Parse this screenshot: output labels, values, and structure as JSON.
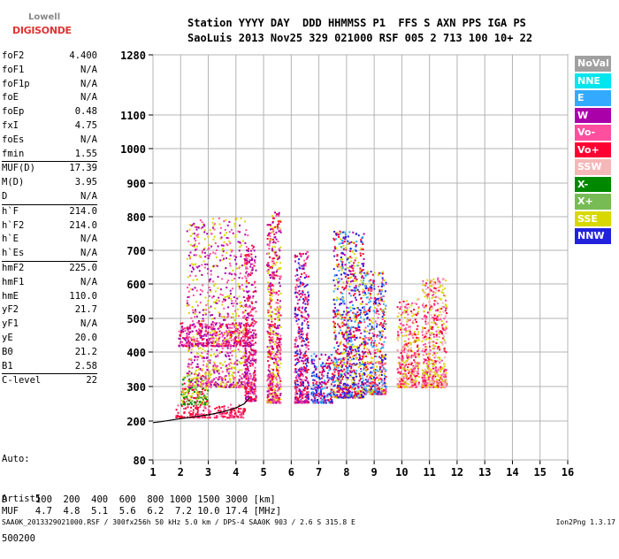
{
  "logo": {
    "line1": "Lowell",
    "line2": "DIGISONDE"
  },
  "header": {
    "line1": "Station YYYY DAY  DDD HHMMSS P1  FFS S AXN PPS IGA PS",
    "line2": "SaoLuis 2013 Nov25 329 021000 RSF 005 2 713 100 10+ 22"
  },
  "params": [
    {
      "label": "foF2",
      "value": "4.400"
    },
    {
      "label": "foF1",
      "value": "N/A"
    },
    {
      "label": "foF1p",
      "value": "N/A"
    },
    {
      "label": "foE",
      "value": "N/A"
    },
    {
      "label": "foEp",
      "value": "0.48"
    },
    {
      "label": "fxI",
      "value": "4.75"
    },
    {
      "label": "foEs",
      "value": "N/A"
    },
    {
      "label": "fmin",
      "value": "1.55"
    },
    {
      "label": "MUF(D)",
      "value": "17.39"
    },
    {
      "label": "M(D)",
      "value": "3.95"
    },
    {
      "label": "D",
      "value": "N/A"
    },
    {
      "label": "h`F",
      "value": "214.0"
    },
    {
      "label": "h`F2",
      "value": "214.0"
    },
    {
      "label": "h`E",
      "value": "N/A"
    },
    {
      "label": "h`Es",
      "value": "N/A"
    },
    {
      "label": "hmF2",
      "value": "225.0"
    },
    {
      "label": "hmF1",
      "value": "N/A"
    },
    {
      "label": "hmE",
      "value": "110.0"
    },
    {
      "label": "yF2",
      "value": "21.7"
    },
    {
      "label": "yF1",
      "value": "N/A"
    },
    {
      "label": "yE",
      "value": "20.0"
    },
    {
      "label": "B0",
      "value": "21.2"
    },
    {
      "label": "B1",
      "value": "2.58"
    },
    {
      "label": "C-level",
      "value": "22"
    }
  ],
  "auto": {
    "line1": "Auto:",
    "line2": "Artist5",
    "line3": "500200"
  },
  "legend": [
    {
      "label": "NoVal",
      "color": "#a0a0a0"
    },
    {
      "label": "NNE",
      "color": "#00e5ee"
    },
    {
      "label": "E",
      "color": "#33aaff"
    },
    {
      "label": "W",
      "color": "#aa00aa"
    },
    {
      "label": "Vo-",
      "color": "#ff4f9e"
    },
    {
      "label": "Vo+",
      "color": "#ff0033"
    },
    {
      "label": "SSW",
      "color": "#f5b8b8"
    },
    {
      "label": "X-",
      "color": "#008800"
    },
    {
      "label": "X+",
      "color": "#77bb55"
    },
    {
      "label": "SSE",
      "color": "#d8d800"
    },
    {
      "label": "NNW",
      "color": "#2222dd"
    }
  ],
  "muf_table": {
    "d_row": "D     100  200  400  600  800 1000 1500 3000 [km]",
    "muf_row": "MUF   4.7  4.8  5.1  5.6  6.2  7.2 10.0 17.4 [MHz]"
  },
  "footer": {
    "left": "SAA0K_2013329021000.RSF / 300fx256h 50 kHz 5.0 km / DPS-4 SAA0K 903 / 2.6 S 315.8 E",
    "right": "Ion2Png 1.3.17"
  },
  "chart_data": {
    "type": "scatter",
    "xlabel": "",
    "ylabel": "",
    "xlim": [
      1,
      16
    ],
    "ylim": [
      80,
      1280
    ],
    "x_ticks": [
      1,
      2,
      3,
      4,
      5,
      6,
      7,
      8,
      9,
      10,
      11,
      12,
      13,
      14,
      15,
      16
    ],
    "y_ticks": [
      80,
      200,
      300,
      400,
      500,
      600,
      700,
      800,
      900,
      1000,
      1100,
      1280
    ],
    "grid": true,
    "trace_x": [
      1.0,
      1.3,
      1.6,
      2.0,
      2.5,
      3.0,
      3.5,
      4.0,
      4.3,
      4.5
    ],
    "trace_y": [
      195,
      198,
      202,
      207,
      212,
      218,
      226,
      238,
      250,
      268
    ],
    "echo_clusters": [
      {
        "x_range": [
          1.8,
          4.3
        ],
        "y_range": [
          212,
          250
        ],
        "colors": [
          "#ff0033",
          "#ff4f9e",
          "#ff0033"
        ]
      },
      {
        "x_range": [
          2.0,
          3.0
        ],
        "y_range": [
          250,
          340
        ],
        "colors": [
          "#008800",
          "#d8d800",
          "#77bb55",
          "#ff0033"
        ]
      },
      {
        "x_range": [
          1.9,
          4.6
        ],
        "y_range": [
          420,
          490
        ],
        "colors": [
          "#aa00aa",
          "#ff4f9e",
          "#ff0033"
        ]
      },
      {
        "x_range": [
          2.2,
          4.4
        ],
        "y_range": [
          300,
          800
        ],
        "colors": [
          "#d8d800",
          "#aa00aa",
          "#ff4f9e"
        ]
      },
      {
        "x_range": [
          4.3,
          4.7
        ],
        "y_range": [
          260,
          720
        ],
        "colors": [
          "#ff0033",
          "#ff4f9e",
          "#aa00aa"
        ]
      },
      {
        "x_range": [
          5.1,
          5.6
        ],
        "y_range": [
          255,
          820
        ],
        "colors": [
          "#ff0033",
          "#ff4f9e",
          "#aa00aa",
          "#d8d800"
        ]
      },
      {
        "x_range": [
          6.1,
          6.6
        ],
        "y_range": [
          255,
          700
        ],
        "colors": [
          "#ff0033",
          "#aa00aa",
          "#ff4f9e",
          "#2222dd"
        ]
      },
      {
        "x_range": [
          6.7,
          7.5
        ],
        "y_range": [
          255,
          400
        ],
        "colors": [
          "#2222dd",
          "#ff0033",
          "#aa00aa",
          "#33aaff"
        ]
      },
      {
        "x_range": [
          7.5,
          8.6
        ],
        "y_range": [
          270,
          760
        ],
        "colors": [
          "#2222dd",
          "#ff0033",
          "#33aaff",
          "#d8d800",
          "#aa00aa"
        ]
      },
      {
        "x_range": [
          8.6,
          9.4
        ],
        "y_range": [
          280,
          640
        ],
        "colors": [
          "#2222dd",
          "#ff0033",
          "#d8d800",
          "#33aaff",
          "#ff4f9e"
        ]
      },
      {
        "x_range": [
          9.8,
          10.6
        ],
        "y_range": [
          300,
          560
        ],
        "colors": [
          "#d8d800",
          "#ff4f9e",
          "#ff0033",
          "#f5b8b8"
        ]
      },
      {
        "x_range": [
          10.7,
          11.6
        ],
        "y_range": [
          300,
          620
        ],
        "colors": [
          "#d8d800",
          "#ff4f9e",
          "#ff0033",
          "#f5b8b8"
        ]
      }
    ]
  }
}
